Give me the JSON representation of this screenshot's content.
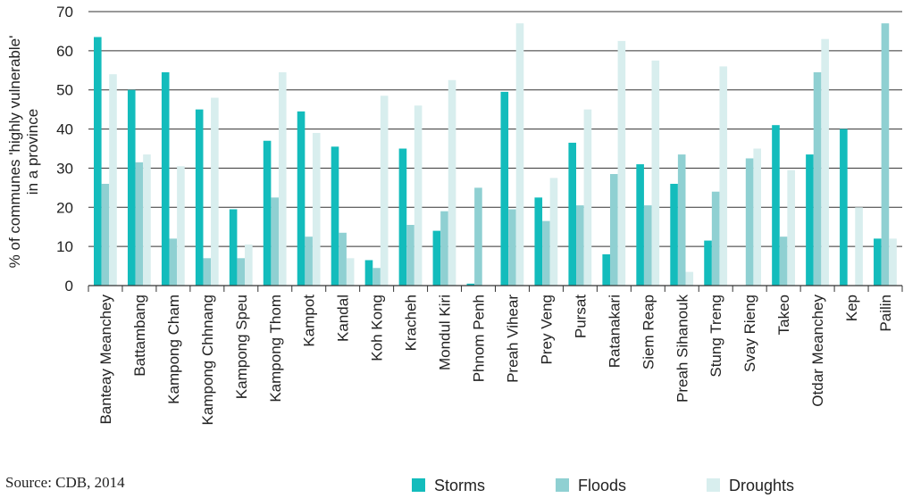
{
  "source": "Source: CDB, 2014",
  "chart_data": {
    "type": "bar",
    "ylabel_line1": "% of communes 'highly vulnerable'",
    "ylabel_line2": "in a province",
    "ylim": [
      0,
      70
    ],
    "yticks": [
      0,
      10,
      20,
      30,
      40,
      50,
      60,
      70
    ],
    "grid": true,
    "legend_position": "bottom-right",
    "categories": [
      "Banteay Meanchey",
      "Battambang",
      "Kampong Cham",
      "Kampong Chhnang",
      "Kampong Speu",
      "Kampong Thom",
      "Kampot",
      "Kandal",
      "Koh Kong",
      "Kracheh",
      "Mondul Kiri",
      "Phnom Penh",
      "Preah Vihear",
      "Prey Veng",
      "Pursat",
      "Ratanakari",
      "Siem Reap",
      "Preah Sihanouk",
      "Stung Treng",
      "Svay Rieng",
      "Takeo",
      "Otdar Meanchey",
      "Kep",
      "Pailin"
    ],
    "series": [
      {
        "name": "Storms",
        "color": "#13bcbc",
        "values": [
          63.5,
          50,
          54.5,
          45,
          19.5,
          37,
          44.5,
          35.5,
          6.5,
          35,
          14,
          0.5,
          49.5,
          22.5,
          36.5,
          8,
          31,
          26,
          11.5,
          0,
          41,
          33.5,
          40,
          12
        ]
      },
      {
        "name": "Floods",
        "color": "#8fd0d2",
        "values": [
          26,
          31.5,
          12,
          7,
          7,
          22.5,
          12.5,
          13.5,
          4.5,
          15.5,
          19,
          25,
          19.5,
          16.5,
          20.5,
          28.5,
          20.5,
          33.5,
          24,
          32.5,
          12.5,
          54.5,
          0,
          67
        ]
      },
      {
        "name": "Droughts",
        "color": "#d8eeee",
        "values": [
          54,
          33.5,
          30.5,
          48,
          10.5,
          54.5,
          39,
          7,
          48.5,
          46,
          52.5,
          0,
          67,
          27.5,
          45,
          62.5,
          57.5,
          3.5,
          56,
          35,
          29.5,
          63,
          20,
          12
        ]
      }
    ]
  }
}
